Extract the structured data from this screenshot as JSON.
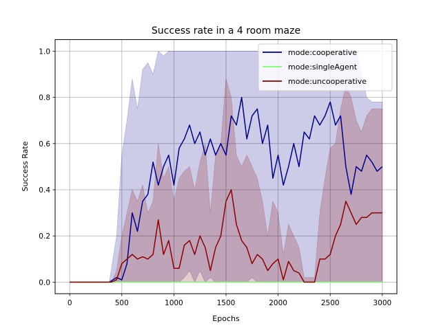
{
  "chart_data": {
    "type": "line",
    "title": "Success rate in a 4 room maze",
    "xlabel": "Epochs",
    "ylabel": "Success Rate",
    "xlim": [
      -140,
      3140
    ],
    "ylim": [
      -0.05,
      1.05
    ],
    "xticks": [
      0,
      500,
      1000,
      1500,
      2000,
      2500,
      3000
    ],
    "xtick_labels": [
      "0",
      "500",
      "1000",
      "1500",
      "2000",
      "2500",
      "3000"
    ],
    "yticks": [
      0.0,
      0.2,
      0.4,
      0.6,
      0.8,
      1.0
    ],
    "ytick_labels": [
      "0.0",
      "0.2",
      "0.4",
      "0.6",
      "0.8",
      "1.0"
    ],
    "grid": true,
    "legend_position": "top-right",
    "series": [
      {
        "name": "mode:cooperative",
        "color": "#00008b",
        "x": [
          0,
          380,
          450,
          500,
          550,
          600,
          650,
          700,
          750,
          800,
          850,
          900,
          950,
          1000,
          1050,
          1100,
          1150,
          1200,
          1250,
          1300,
          1350,
          1400,
          1450,
          1500,
          1550,
          1600,
          1650,
          1700,
          1750,
          1800,
          1850,
          1900,
          1950,
          2000,
          2050,
          2100,
          2150,
          2200,
          2250,
          2300,
          2350,
          2400,
          2450,
          2500,
          2550,
          2600,
          2650,
          2700,
          2750,
          2800,
          2850,
          2900,
          2950,
          3000
        ],
        "y": [
          0.0,
          0.0,
          0.02,
          0.01,
          0.08,
          0.3,
          0.22,
          0.35,
          0.38,
          0.52,
          0.42,
          0.5,
          0.55,
          0.42,
          0.58,
          0.62,
          0.68,
          0.6,
          0.65,
          0.55,
          0.62,
          0.55,
          0.6,
          0.55,
          0.72,
          0.68,
          0.8,
          0.62,
          0.72,
          0.75,
          0.6,
          0.68,
          0.45,
          0.55,
          0.42,
          0.5,
          0.6,
          0.5,
          0.65,
          0.62,
          0.72,
          0.68,
          0.72,
          0.78,
          0.68,
          0.72,
          0.5,
          0.38,
          0.5,
          0.48,
          0.55,
          0.52,
          0.48,
          0.5
        ]
      },
      {
        "name": "mode:singleAgent",
        "color": "#7cfc70",
        "x": [
          0,
          3000
        ],
        "y": [
          0.0,
          0.0
        ]
      },
      {
        "name": "mode:uncooperative",
        "color": "#8b0000",
        "x": [
          0,
          400,
          450,
          500,
          550,
          600,
          650,
          700,
          750,
          800,
          850,
          900,
          950,
          1000,
          1050,
          1100,
          1150,
          1200,
          1250,
          1300,
          1350,
          1400,
          1450,
          1500,
          1550,
          1600,
          1650,
          1700,
          1750,
          1800,
          1850,
          1900,
          1950,
          2000,
          2050,
          2100,
          2150,
          2200,
          2250,
          2300,
          2350,
          2400,
          2450,
          2500,
          2550,
          2600,
          2650,
          2700,
          2750,
          2800,
          2850,
          2900,
          2950,
          3000
        ],
        "y": [
          0.0,
          0.0,
          0.01,
          0.08,
          0.1,
          0.12,
          0.1,
          0.11,
          0.1,
          0.12,
          0.27,
          0.12,
          0.18,
          0.06,
          0.06,
          0.16,
          0.18,
          0.12,
          0.2,
          0.15,
          0.05,
          0.15,
          0.2,
          0.35,
          0.4,
          0.25,
          0.18,
          0.15,
          0.08,
          0.12,
          0.1,
          0.05,
          0.08,
          0.1,
          0.01,
          0.09,
          0.05,
          0.04,
          0.0,
          0.0,
          0.0,
          0.1,
          0.1,
          0.12,
          0.2,
          0.25,
          0.35,
          0.3,
          0.25,
          0.28,
          0.28,
          0.3,
          0.3,
          0.3
        ]
      }
    ],
    "bands": [
      {
        "series": "mode:cooperative",
        "color": "#00008b",
        "x": [
          0,
          380,
          450,
          500,
          550,
          600,
          650,
          700,
          750,
          800,
          850,
          900,
          950,
          1000,
          1050,
          1100,
          1150,
          1200,
          1250,
          1300,
          1350,
          1400,
          1450,
          1500,
          1550,
          1600,
          1650,
          1700,
          1750,
          1800,
          1850,
          1900,
          1950,
          2000,
          2050,
          2100,
          2150,
          2200,
          2250,
          2300,
          2350,
          2400,
          2450,
          2500,
          2550,
          2600,
          2650,
          2700,
          2750,
          2800,
          2850,
          2900,
          2950,
          3000
        ],
        "lower": [
          0.0,
          0.0,
          0.0,
          0.0,
          0.0,
          0.0,
          0.0,
          0.0,
          0.0,
          0.0,
          0.0,
          0.0,
          0.0,
          0.0,
          0.0,
          0.02,
          0.05,
          0.0,
          0.05,
          0.0,
          0.02,
          0.0,
          0.0,
          0.0,
          0.0,
          0.0,
          0.0,
          0.0,
          0.02,
          0.0,
          0.0,
          0.0,
          0.0,
          0.0,
          0.0,
          0.0,
          0.0,
          0.0,
          0.0,
          0.0,
          0.0,
          0.0,
          0.0,
          0.0,
          0.0,
          0.0,
          0.0,
          0.0,
          0.0,
          0.0,
          0.0,
          0.0,
          0.0,
          0.0
        ],
        "upper": [
          0.0,
          0.0,
          0.2,
          0.55,
          0.7,
          0.88,
          0.75,
          0.92,
          0.95,
          0.9,
          1.0,
          0.98,
          1.0,
          1.0,
          1.0,
          1.0,
          1.0,
          1.0,
          1.0,
          1.0,
          1.0,
          1.0,
          1.0,
          1.0,
          1.0,
          1.0,
          1.0,
          1.0,
          1.0,
          1.0,
          1.0,
          1.0,
          1.0,
          1.0,
          1.0,
          1.0,
          1.0,
          1.0,
          1.0,
          1.0,
          1.0,
          1.0,
          1.0,
          1.0,
          1.0,
          1.0,
          1.0,
          1.0,
          1.0,
          0.9,
          0.8,
          0.78,
          0.78,
          0.78
        ]
      },
      {
        "series": "mode:singleAgent",
        "color": "#7cfc70",
        "x": [
          0,
          3000
        ],
        "lower": [
          0.0,
          0.0
        ],
        "upper": [
          0.0,
          0.0
        ]
      },
      {
        "series": "mode:uncooperative",
        "color": "#8b0000",
        "x": [
          0,
          400,
          450,
          500,
          550,
          600,
          650,
          700,
          750,
          800,
          850,
          900,
          950,
          1000,
          1050,
          1100,
          1150,
          1200,
          1250,
          1300,
          1350,
          1400,
          1450,
          1500,
          1550,
          1600,
          1650,
          1700,
          1750,
          1800,
          1850,
          1900,
          1950,
          2000,
          2050,
          2100,
          2150,
          2200,
          2250,
          2300,
          2350,
          2400,
          2450,
          2500,
          2550,
          2600,
          2650,
          2700,
          2750,
          2800,
          2850,
          2900,
          2950,
          3000
        ],
        "lower": [
          0.0,
          0.0,
          0.0,
          0.0,
          0.0,
          0.0,
          0.0,
          0.0,
          0.0,
          0.0,
          0.0,
          0.0,
          0.0,
          0.0,
          0.0,
          0.0,
          0.0,
          0.0,
          0.0,
          0.0,
          0.0,
          0.0,
          0.0,
          0.0,
          0.0,
          0.0,
          0.0,
          0.0,
          0.0,
          0.0,
          0.0,
          0.0,
          0.0,
          0.0,
          0.0,
          0.0,
          0.0,
          0.0,
          0.0,
          0.0,
          0.0,
          0.0,
          0.0,
          0.0,
          0.0,
          0.0,
          0.0,
          0.0,
          0.0,
          0.0,
          0.0,
          0.0,
          0.0,
          0.0
        ],
        "upper": [
          0.0,
          0.0,
          0.05,
          0.2,
          0.3,
          0.4,
          0.35,
          0.42,
          0.3,
          0.35,
          0.6,
          0.45,
          0.5,
          0.35,
          0.45,
          0.48,
          0.5,
          0.4,
          0.52,
          0.6,
          0.3,
          0.55,
          0.6,
          0.88,
          0.8,
          0.55,
          0.5,
          0.55,
          0.5,
          0.45,
          0.35,
          0.2,
          0.35,
          0.3,
          0.12,
          0.25,
          0.2,
          0.15,
          0.02,
          0.02,
          0.02,
          0.3,
          0.45,
          0.58,
          0.6,
          0.75,
          0.85,
          0.8,
          0.7,
          0.65,
          0.72,
          0.75,
          0.75,
          0.75
        ]
      }
    ]
  }
}
